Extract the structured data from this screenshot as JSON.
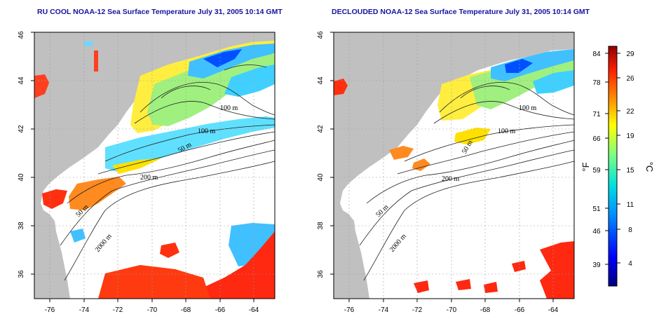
{
  "panels": [
    {
      "id": "left",
      "title": "RU COOL NOAA-12 Sea Surface Temperature July 31, 2005 10:14 GMT",
      "contour_labels": [
        "100 m",
        "100 m",
        "50 m",
        "200 m",
        "50 m",
        "2000 m"
      ]
    },
    {
      "id": "right",
      "title": "DECLOUDED NOAA-12 Sea Surface Temperature July 31, 2005 10:14 GMT",
      "contour_labels": [
        "100 m",
        "100 m",
        "50 m",
        "200 m",
        "50 m",
        "2000 m"
      ]
    }
  ],
  "axes": {
    "x_ticks": [
      "-76",
      "-74",
      "-72",
      "-70",
      "-68",
      "-66",
      "-64"
    ],
    "y_ticks": [
      "36",
      "38",
      "40",
      "42",
      "44",
      "46"
    ],
    "x_range": [
      -77.2,
      -63.0
    ],
    "y_range": [
      35.0,
      46.0
    ],
    "grid": "dotted"
  },
  "colorbar": {
    "fahrenheit_label": "°F",
    "celsius_label": "°C",
    "fahrenheit_ticks": [
      "84",
      "78",
      "71",
      "66",
      "59",
      "51",
      "46",
      "39"
    ],
    "celsius_ticks": [
      "29",
      "26",
      "22",
      "19",
      "15",
      "11",
      "8",
      "4"
    ]
  },
  "colors": {
    "land": "#c0c0c0",
    "sea_cold": "#0000c8",
    "sea_mid": "#00e0e0",
    "sea_warm": "#ffff00",
    "sea_hot": "#ff0000",
    "title": "#1414a0"
  }
}
